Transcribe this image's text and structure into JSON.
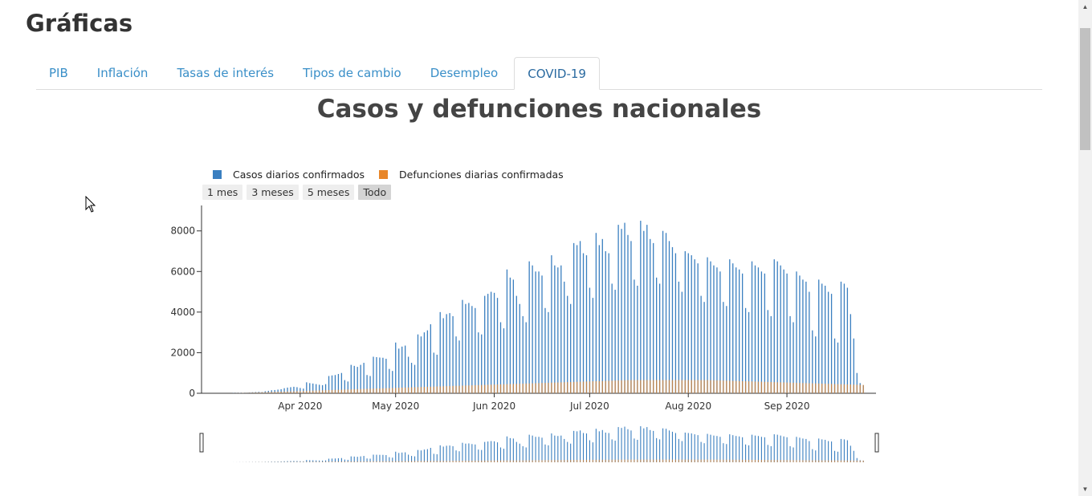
{
  "page": {
    "heading": "Gráficas"
  },
  "tabs": [
    {
      "label": "PIB",
      "active": false
    },
    {
      "label": "Inflación",
      "active": false
    },
    {
      "label": "Tasas de interés",
      "active": false
    },
    {
      "label": "Tipos de cambio",
      "active": false
    },
    {
      "label": "Desempleo",
      "active": false
    },
    {
      "label": "COVID-19",
      "active": true
    }
  ],
  "chart": {
    "title": "Casos y defunciones nacionales",
    "legend": [
      {
        "label": "Casos diarios confirmados",
        "color": "#3a7fc0"
      },
      {
        "label": "Defunciones diarias confirmadas",
        "color": "#e8862a"
      }
    ],
    "range_buttons": [
      {
        "label": "1 mes",
        "active": false
      },
      {
        "label": "3 meses",
        "active": false
      },
      {
        "label": "5 meses",
        "active": false
      },
      {
        "label": "Todo",
        "active": true
      }
    ],
    "y_ticks": [
      "0",
      "2000",
      "4000",
      "6000",
      "8000"
    ],
    "x_ticks": [
      "Apr 2020",
      "May 2020",
      "Jun 2020",
      "Jul 2020",
      "Aug 2020",
      "Sep 2020"
    ]
  },
  "chart_data": {
    "type": "bar",
    "title": "Casos y defunciones nacionales",
    "ylim": [
      0,
      9000
    ],
    "x_range": [
      "2020-03-01",
      "2020-09-29"
    ],
    "series": [
      {
        "name": "Casos diarios confirmados",
        "color": "#3a7fc0",
        "start_date": "2020-03-11",
        "values": [
          10,
          10,
          20,
          20,
          30,
          40,
          50,
          60,
          70,
          60,
          100,
          120,
          150,
          160,
          180,
          200,
          250,
          280,
          300,
          320,
          300,
          260,
          230,
          540,
          500,
          480,
          450,
          420,
          400,
          450,
          850,
          880,
          900,
          950,
          1000,
          650,
          580,
          1400,
          1350,
          1300,
          1400,
          1500,
          900,
          850,
          1800,
          1780,
          1760,
          1750,
          1700,
          1200,
          1100,
          2500,
          2200,
          2300,
          2350,
          1800,
          1500,
          1400,
          2900,
          2800,
          3000,
          3100,
          3400,
          2000,
          1900,
          4000,
          3700,
          3900,
          3950,
          3800,
          2800,
          2600,
          4600,
          4400,
          4450,
          4300,
          4200,
          3000,
          2900,
          4800,
          4900,
          5000,
          4950,
          4700,
          3500,
          3200,
          6100,
          5700,
          5600,
          4800,
          4400,
          3800,
          3500,
          6500,
          6300,
          6000,
          6000,
          5800,
          4200,
          4000,
          6800,
          6300,
          6200,
          6300,
          5500,
          4800,
          4400,
          7400,
          7300,
          7500,
          6900,
          6800,
          5200,
          4700,
          7900,
          7300,
          7600,
          7000,
          6900,
          5400,
          5100,
          8300,
          8100,
          8400,
          7800,
          7500,
          5600,
          5300,
          8500,
          8000,
          8300,
          7600,
          7400,
          5700,
          5400,
          8000,
          7900,
          7500,
          7200,
          6900,
          5500,
          5000,
          7000,
          6900,
          6800,
          6600,
          6400,
          4800,
          4500,
          6700,
          6500,
          6300,
          6200,
          6000,
          4500,
          4300,
          6600,
          6400,
          6200,
          6100,
          5900,
          4200,
          4000,
          6500,
          6300,
          6200,
          6000,
          5900,
          4100,
          3800,
          6600,
          6500,
          6300,
          6100,
          5900,
          3800,
          3500,
          6000,
          5800,
          5600,
          5500,
          5000,
          3100,
          2800,
          5600,
          5400,
          5300,
          5000,
          4900,
          2700,
          2500,
          5500,
          5400,
          5200,
          3900,
          2700,
          1000,
          500,
          400
        ]
      },
      {
        "name": "Defunciones diarias confirmadas",
        "color": "#e8862a",
        "start_date": "2020-03-11"
      }
    ]
  },
  "ui_colors": {
    "tab_link": "#3a8fc8",
    "accent": "#3a7fc0",
    "deaths": "#e8862a"
  }
}
